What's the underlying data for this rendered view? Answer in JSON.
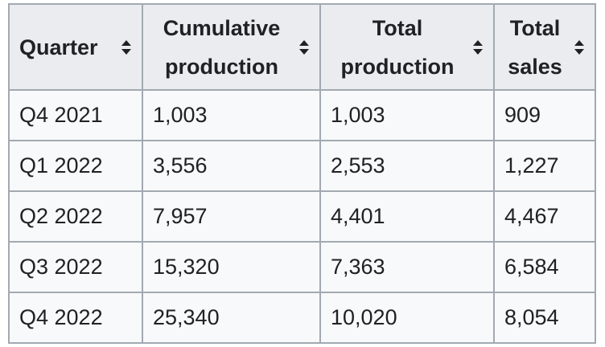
{
  "table": {
    "headers": [
      {
        "lines": [
          "Quarter"
        ],
        "align": "left"
      },
      {
        "lines": [
          "Cumulative",
          "production"
        ],
        "align": "center"
      },
      {
        "lines": [
          "Total",
          "production"
        ],
        "align": "center"
      },
      {
        "lines": [
          "Total",
          "sales"
        ],
        "align": "center"
      }
    ],
    "rows": [
      [
        "Q4 2021",
        "1,003",
        "1,003",
        "909"
      ],
      [
        "Q1 2022",
        "3,556",
        "2,553",
        "1,227"
      ],
      [
        "Q2 2022",
        "7,957",
        "4,401",
        "4,467"
      ],
      [
        "Q3 2022",
        "15,320",
        "7,363",
        "6,584"
      ],
      [
        "Q4 2022",
        "25,340",
        "10,020",
        "8,054"
      ]
    ]
  },
  "icons": {
    "sort": "sort-up-down-icon"
  },
  "colors": {
    "header_bg": "#eaecf0",
    "cell_bg": "#f8f9fa",
    "border": "#a2a9b1",
    "text": "#202122"
  }
}
